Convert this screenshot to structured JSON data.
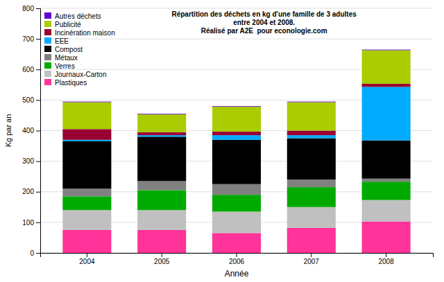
{
  "chart_data": {
    "type": "bar",
    "stacked": true,
    "title": "Répartition des déchets en kg d'une famille de 3 adultes\nentre 2004 et 2008.\nRéalisé par A2E  pour econologie.com",
    "xlabel": "Année",
    "ylabel": "Kg par an",
    "categories": [
      "2004",
      "2005",
      "2006",
      "2007",
      "2008"
    ],
    "series": [
      {
        "name": "Plastiques",
        "color": "#FF3399",
        "values": [
          75,
          75,
          65,
          82,
          103
        ]
      },
      {
        "name": "Journaux-Carton",
        "color": "#C0C0C0",
        "values": [
          65,
          65,
          70,
          68,
          70
        ]
      },
      {
        "name": "Verres",
        "color": "#00AA00",
        "values": [
          45,
          65,
          55,
          65,
          60
        ]
      },
      {
        "name": "Métaux",
        "color": "#808080",
        "values": [
          25,
          30,
          35,
          25,
          10
        ]
      },
      {
        "name": "Compost",
        "color": "#000000",
        "values": [
          155,
          145,
          145,
          135,
          125
        ]
      },
      {
        "name": "EEE",
        "color": "#00AAFF",
        "values": [
          5,
          5,
          15,
          10,
          175
        ]
      },
      {
        "name": "Incinération maison",
        "color": "#990033",
        "values": [
          35,
          10,
          12,
          15,
          10
        ]
      },
      {
        "name": "Publicité",
        "color": "#AACC00",
        "values": [
          88,
          58,
          81,
          93,
          110
        ]
      },
      {
        "name": "Autres déchets",
        "color": "#6600CC",
        "values": [
          2,
          2,
          2,
          2,
          2
        ]
      }
    ],
    "ylim": [
      0,
      800
    ],
    "yticks": [
      0,
      100,
      200,
      300,
      400,
      500,
      600,
      700,
      800
    ],
    "grid": true,
    "legend": "upper left"
  }
}
